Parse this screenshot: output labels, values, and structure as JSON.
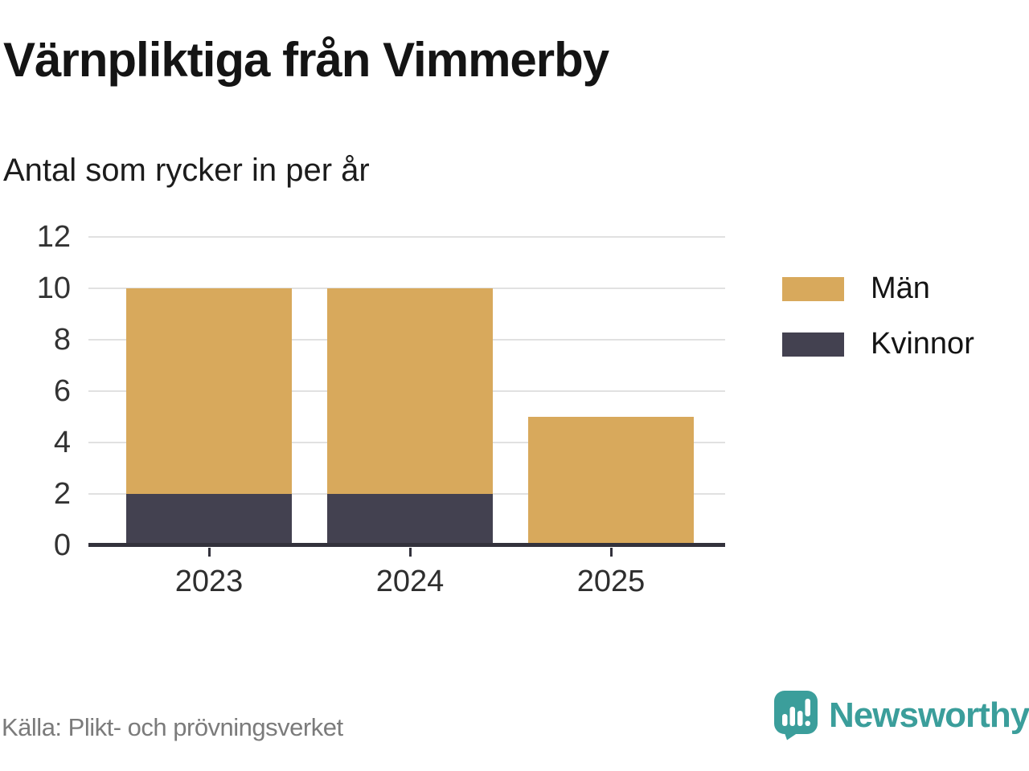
{
  "chart_data": {
    "type": "bar",
    "stacked": true,
    "title": "Värnpliktiga från Vimmerby",
    "subtitle": "Antal som rycker in per år",
    "categories": [
      "2023",
      "2024",
      "2025"
    ],
    "series": [
      {
        "name": "Kvinnor",
        "color": "#434150",
        "values": [
          2,
          2,
          0
        ]
      },
      {
        "name": "Män",
        "color": "#D8A95C",
        "values": [
          8,
          8,
          5
        ]
      }
    ],
    "totals": [
      10,
      10,
      5
    ],
    "ylim": [
      0,
      12
    ],
    "yticks": [
      0,
      2,
      4,
      6,
      8,
      10,
      12
    ],
    "grid": true,
    "grid_color": "#E1E1E1",
    "axis_color": "#33323C",
    "tick_label_color": "#333333",
    "legend_position": "right"
  },
  "legend": {
    "items": [
      {
        "label": "Män",
        "color": "#D8A95C"
      },
      {
        "label": "Kvinnor",
        "color": "#434150"
      }
    ]
  },
  "footer": {
    "source": "Källa: Plikt- och prövningsverket",
    "brand": "Newsworthy",
    "brand_color": "#3B9E9B"
  }
}
